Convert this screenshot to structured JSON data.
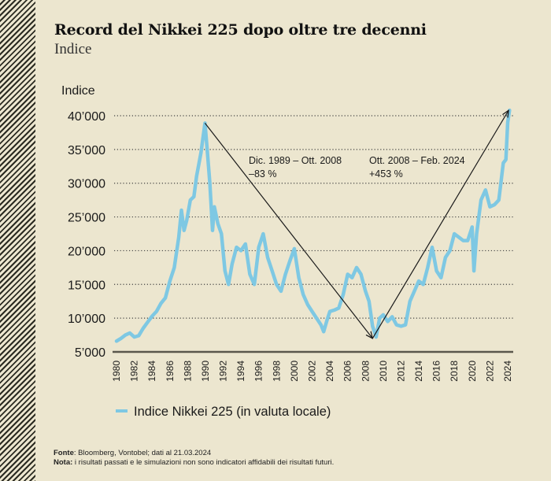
{
  "header": {
    "title": "Record del Nikkei 225 dopo oltre tre decenni",
    "subtitle": "Indice"
  },
  "footer": {
    "source_label": "Fonte",
    "source_text": ": Bloomberg, Vontobel; dati al 21.03.2024",
    "note_label": "Nota:",
    "note_text": " i risultati passati e le simulazioni non sono indicatori affidabili dei risultati futuri."
  },
  "colors": {
    "background": "#ece6cf",
    "series": "#7ec8e3",
    "axis": "#5a574c",
    "arrow": "#1a1a1a"
  },
  "chart_data": {
    "type": "line",
    "title": "Record del Nikkei 225 dopo oltre tre decenni",
    "subtitle": "Indice",
    "ylabel": "Indice",
    "xlabel": "",
    "ylim": [
      5000,
      40000
    ],
    "xlim": [
      1980,
      2024.3
    ],
    "grid": true,
    "yticks": [
      5000,
      10000,
      15000,
      20000,
      25000,
      30000,
      35000,
      40000
    ],
    "ytick_labels": [
      "5’000",
      "10’000",
      "15’000",
      "20’000",
      "25’000",
      "30’000",
      "35’000",
      "40’000"
    ],
    "xticks": [
      1980,
      1982,
      1984,
      1986,
      1988,
      1990,
      1992,
      1994,
      1996,
      1998,
      2000,
      2002,
      2004,
      2006,
      2008,
      2010,
      2012,
      2014,
      2016,
      2018,
      2020,
      2022,
      2024
    ],
    "xtick_labels": [
      "1980",
      "1982",
      "1984",
      "1986",
      "1988",
      "1990",
      "1992",
      "1994",
      "1996",
      "1998",
      "2000",
      "2002",
      "2004",
      "2006",
      "2008",
      "2010",
      "2012",
      "2014",
      "2016",
      "2018",
      "2020",
      "2022",
      "2024"
    ],
    "legend": {
      "position": "bottom-left",
      "entries": [
        "Indice Nikkei 225 (in valuta locale)"
      ]
    },
    "series": [
      {
        "name": "Indice Nikkei 225 (in valuta locale)",
        "x": [
          1980,
          1980.5,
          1981,
          1981.5,
          1982,
          1982.5,
          1983,
          1983.5,
          1984,
          1984.5,
          1985,
          1985.5,
          1986,
          1986.5,
          1987,
          1987.3,
          1987.6,
          1987.9,
          1988.3,
          1988.7,
          1989,
          1989.5,
          1989.95,
          1990.2,
          1990.5,
          1990.8,
          1991,
          1991.4,
          1991.8,
          1992.2,
          1992.6,
          1993,
          1993.5,
          1994,
          1994.5,
          1995,
          1995.5,
          1996,
          1996.5,
          1997,
          1997.5,
          1998,
          1998.5,
          1999,
          1999.5,
          2000,
          2000.5,
          2001,
          2001.5,
          2002,
          2002.5,
          2003,
          2003.3,
          2003.7,
          2004,
          2004.5,
          2005,
          2005.5,
          2006,
          2006.5,
          2007,
          2007.5,
          2008,
          2008.4,
          2008.8,
          2009.2,
          2009.6,
          2010,
          2010.5,
          2011,
          2011.5,
          2012,
          2012.5,
          2013,
          2013.5,
          2014,
          2014.5,
          2015,
          2015.5,
          2016,
          2016.5,
          2017,
          2017.5,
          2018,
          2018.5,
          2019,
          2019.5,
          2020,
          2020.2,
          2020.5,
          2021,
          2021.5,
          2022,
          2022.5,
          2023,
          2023.5,
          2023.8,
          2024,
          2024.2
        ],
        "values": [
          6600,
          7000,
          7500,
          7800,
          7200,
          7400,
          8500,
          9400,
          10300,
          11000,
          12200,
          13000,
          15500,
          17500,
          22000,
          26000,
          23000,
          24500,
          27500,
          28000,
          31000,
          34500,
          38900,
          35000,
          30000,
          23000,
          26500,
          24000,
          22500,
          17000,
          15000,
          18000,
          20500,
          20000,
          21000,
          16500,
          15000,
          20500,
          22500,
          19000,
          17000,
          15000,
          14000,
          16500,
          18500,
          20300,
          16000,
          13500,
          12000,
          11000,
          10000,
          9000,
          8000,
          9800,
          11000,
          11200,
          11500,
          13500,
          16500,
          16000,
          17500,
          16500,
          14000,
          12500,
          8800,
          7200,
          10000,
          10500,
          9500,
          10200,
          9000,
          8800,
          9000,
          12500,
          14000,
          15500,
          15000,
          17500,
          20500,
          17000,
          16000,
          19000,
          20000,
          22500,
          22000,
          21500,
          21500,
          23500,
          17000,
          22500,
          27500,
          29000,
          26500,
          26800,
          27500,
          33000,
          33500,
          39000,
          40800
        ]
      }
    ],
    "annotations": [
      {
        "text_line1": "Dic. 1989 – Ott. 2008",
        "text_line2": "–83 %",
        "from": [
          1989.95,
          38900
        ],
        "to": [
          2008.8,
          7000
        ],
        "arrow": true
      },
      {
        "text_line1": "Ott. 2008 – Feb. 2024",
        "text_line2": "+453 %",
        "from": [
          2008.8,
          7000
        ],
        "to": [
          2024.1,
          40800
        ],
        "arrow": true
      }
    ]
  }
}
